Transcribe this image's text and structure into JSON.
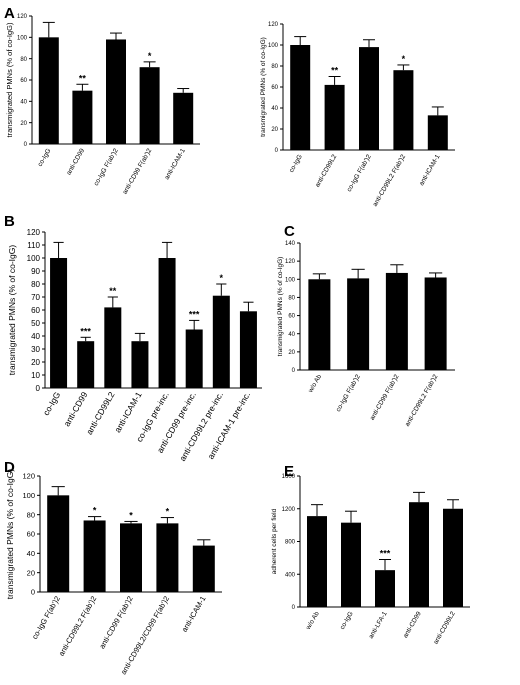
{
  "chart_data": [
    {
      "type": "bar",
      "panel": "A",
      "ylabel": "transmigrated PMNs (% of co-IgG)",
      "ylim": [
        0,
        120
      ],
      "ticks": [
        0,
        20,
        40,
        60,
        80,
        100,
        120
      ],
      "categories": [
        "co-IgG",
        "anti-CD99",
        "co-IgG F(ab')2",
        "anti-CD99 F(ab')2",
        "anti-ICAM-1"
      ],
      "values": [
        100,
        50,
        98,
        72,
        48
      ],
      "errors": [
        14,
        6,
        6,
        5,
        4
      ],
      "significance": [
        "",
        "**",
        "",
        "*",
        ""
      ]
    },
    {
      "type": "bar",
      "panel": "",
      "ylabel": "transmigrated PMNs (% of co-IgG)",
      "ylim": [
        0,
        120
      ],
      "ticks": [
        0,
        20,
        40,
        60,
        80,
        100,
        120
      ],
      "categories": [
        "co-IgG",
        "anti-CD99L2",
        "co-IgG F(ab')2",
        "anti-CD99L2 F(ab')2",
        "anti-ICAM-1"
      ],
      "values": [
        100,
        62,
        98,
        76,
        33
      ],
      "errors": [
        8,
        8,
        7,
        5,
        8
      ],
      "significance": [
        "",
        "**",
        "",
        "*",
        ""
      ]
    },
    {
      "type": "bar",
      "panel": "B",
      "ylabel": "transmigrated PMNs (% of co-IgG)",
      "ylim": [
        0,
        120
      ],
      "ticks": [
        0,
        10,
        20,
        30,
        40,
        50,
        60,
        70,
        80,
        90,
        100,
        110,
        120
      ],
      "categories": [
        "co-IgG",
        "anti-CD99",
        "anti-CD99L2",
        "anti-ICAM-1",
        "co-IgG pre-inc.",
        "anti-CD99 pre-inc.",
        "anti-CD99L2 pre-inc.",
        "anti-ICAM-1 pre-inc."
      ],
      "values": [
        100,
        36,
        62,
        36,
        100,
        45,
        71,
        59
      ],
      "errors": [
        12,
        3,
        8,
        6,
        12,
        7,
        9,
        7
      ],
      "significance": [
        "",
        "***",
        "**",
        "",
        "",
        "***",
        "*",
        ""
      ]
    },
    {
      "type": "bar",
      "panel": "C",
      "ylabel": "transmigrated PMNs (% of co-IgG)",
      "ylim": [
        0,
        140
      ],
      "ticks": [
        0,
        20,
        40,
        60,
        80,
        100,
        120,
        140
      ],
      "categories": [
        "w/o Ab",
        "co-IgG F(ab')2",
        "anti-CD99 F(ab')2",
        "anti-CD99L2 F(ab')2"
      ],
      "values": [
        100,
        101,
        107,
        102
      ],
      "errors": [
        6,
        10,
        9,
        5
      ],
      "significance": [
        "",
        "",
        "",
        ""
      ]
    },
    {
      "type": "bar",
      "panel": "D",
      "ylabel": "transmigrated PMNs (% of co-IgG)",
      "ylim": [
        0,
        120
      ],
      "ticks": [
        0,
        20,
        40,
        60,
        80,
        100,
        120
      ],
      "categories": [
        "co-IgG F(ab')2",
        "anti-CD99L2 F(ab')2",
        "anti-CD99 F(ab')2",
        "anti-CD99L2/CD99 F(ab')2",
        "anti-ICAM-1"
      ],
      "values": [
        100,
        74,
        71,
        71,
        48
      ],
      "errors": [
        9,
        4,
        2,
        6,
        6
      ],
      "significance": [
        "",
        "*",
        "*",
        "*",
        ""
      ]
    },
    {
      "type": "bar",
      "panel": "E",
      "ylabel": "adherent cells per field",
      "ylim": [
        0,
        1600
      ],
      "ticks": [
        0,
        400,
        800,
        1200,
        1600
      ],
      "categories": [
        "w/o Ab",
        "co-IgG",
        "anti-LFA-1",
        "anti-CD99",
        "anti-CD99L2"
      ],
      "values": [
        1110,
        1030,
        450,
        1280,
        1200
      ],
      "errors": [
        140,
        140,
        130,
        120,
        110
      ],
      "significance": [
        "",
        "",
        "***",
        "",
        ""
      ]
    }
  ]
}
